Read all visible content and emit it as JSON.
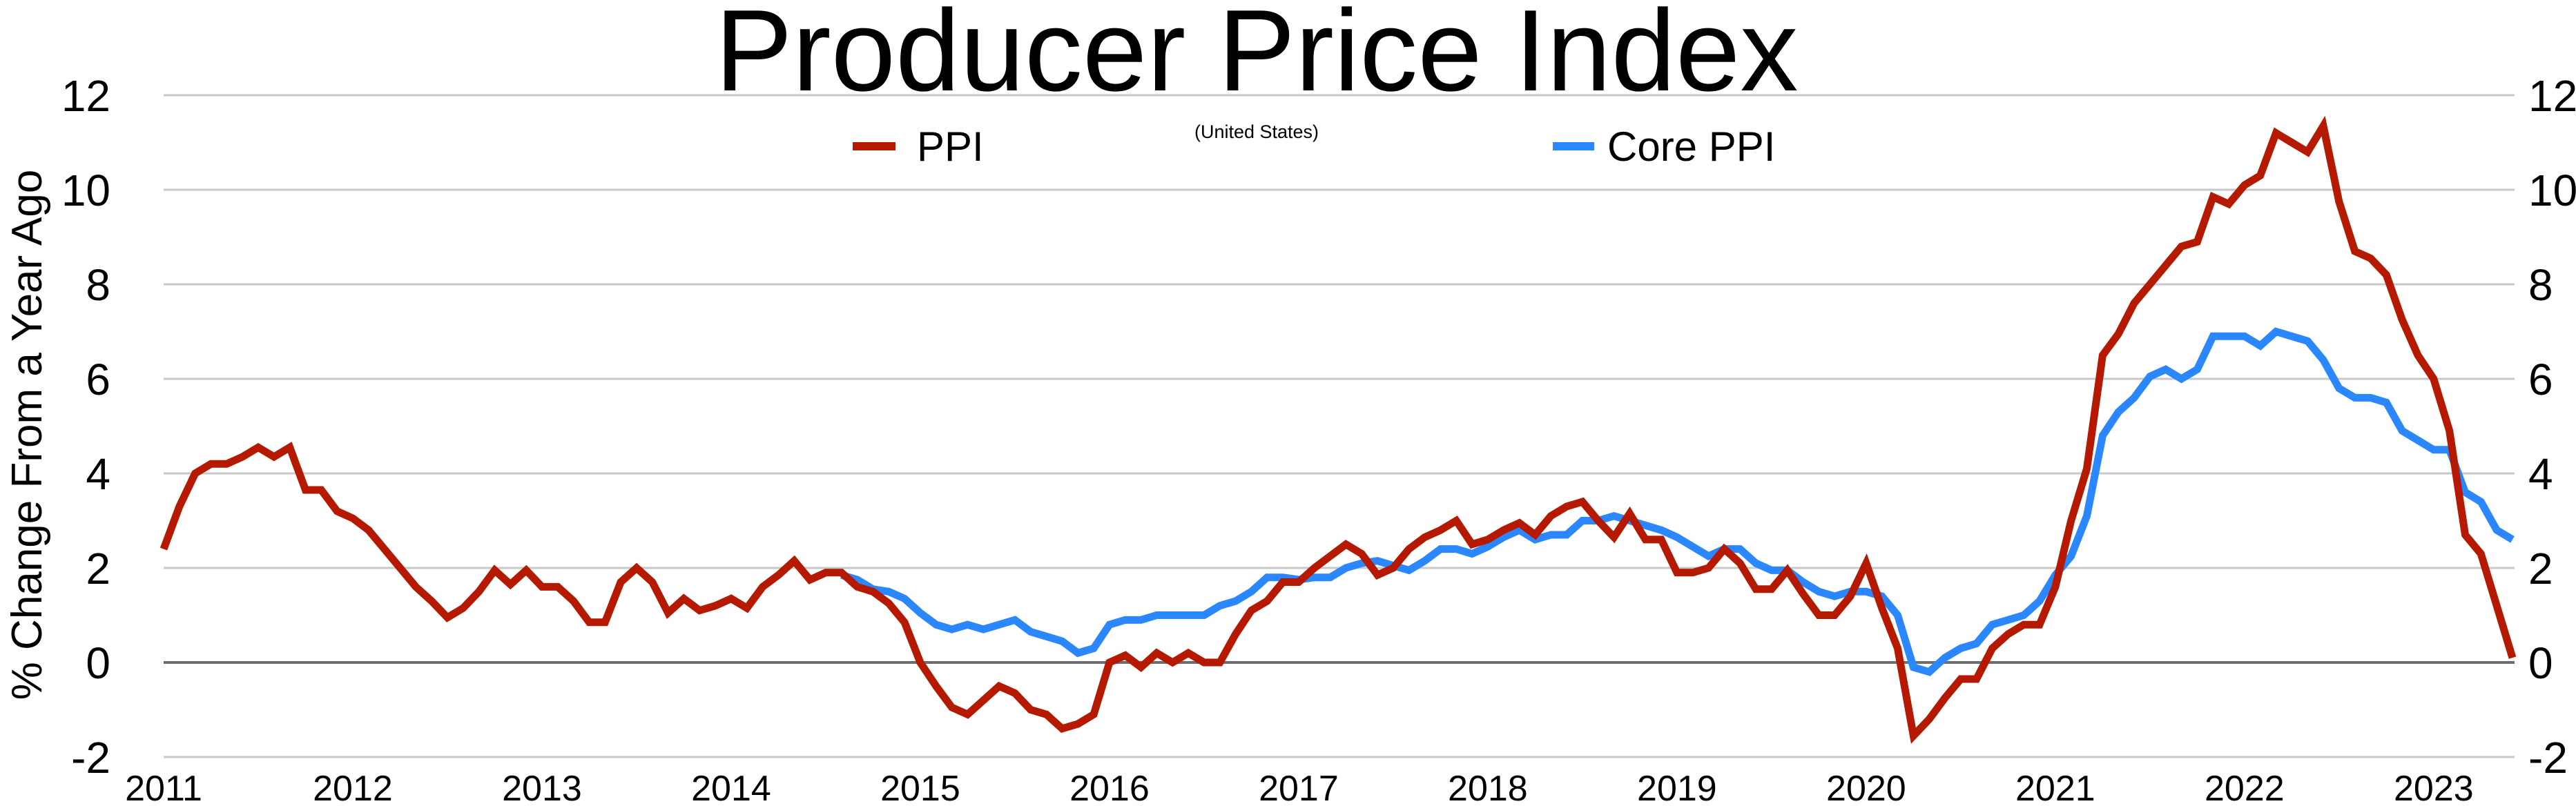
{
  "chart_data": {
    "type": "line",
    "title": "Producer Price Index",
    "subtitle": "(United States)",
    "xlabel": "",
    "ylabel": "% Change From a Year Ago",
    "ylim": [
      -2,
      12
    ],
    "yticks": [
      -2,
      0,
      2,
      4,
      6,
      8,
      10,
      12
    ],
    "x_start": "2011-01",
    "x_frequency": "monthly",
    "xtick_labels": [
      "2011",
      "2012",
      "2013",
      "2014",
      "2015",
      "2016",
      "2017",
      "2018",
      "2019",
      "2020",
      "2021",
      "2022",
      "2023"
    ],
    "grid": true,
    "legend_position": "top",
    "colors": {
      "PPI": "#b51a00",
      "Core PPI": "#2a87ff"
    },
    "series": [
      {
        "name": "PPI",
        "start_index": 0,
        "values": [
          2.4,
          3.3,
          4.0,
          4.2,
          4.2,
          4.35,
          4.55,
          4.35,
          4.55,
          3.65,
          3.65,
          3.2,
          3.05,
          2.8,
          2.4,
          2.0,
          1.6,
          1.3,
          0.95,
          1.15,
          1.5,
          1.95,
          1.65,
          1.95,
          1.6,
          1.6,
          1.3,
          0.85,
          0.85,
          1.7,
          2.0,
          1.7,
          1.05,
          1.35,
          1.1,
          1.2,
          1.35,
          1.15,
          1.6,
          1.85,
          2.15,
          1.75,
          1.9,
          1.9,
          1.6,
          1.5,
          1.25,
          0.85,
          0.0,
          -0.5,
          -0.95,
          -1.1,
          -0.8,
          -0.5,
          -0.65,
          -1.0,
          -1.1,
          -1.4,
          -1.3,
          -1.1,
          0.0,
          0.15,
          -0.1,
          0.2,
          0.0,
          0.2,
          0.0,
          0.0,
          0.6,
          1.1,
          1.3,
          1.7,
          1.7,
          2.0,
          2.25,
          2.5,
          2.3,
          1.85,
          2.0,
          2.4,
          2.65,
          2.8,
          3.0,
          2.5,
          2.6,
          2.8,
          2.95,
          2.7,
          3.1,
          3.3,
          3.4,
          3.0,
          2.65,
          3.15,
          2.6,
          2.6,
          1.9,
          1.9,
          2.0,
          2.4,
          2.1,
          1.55,
          1.55,
          1.95,
          1.45,
          1.0,
          1.0,
          1.4,
          2.1,
          1.15,
          0.3,
          -1.55,
          -1.2,
          -0.75,
          -0.35,
          -0.35,
          0.3,
          0.6,
          0.8,
          0.8,
          1.6,
          3.0,
          4.1,
          6.5,
          6.95,
          7.6,
          8.0,
          8.4,
          8.8,
          8.9,
          9.85,
          9.7,
          10.1,
          10.3,
          11.2,
          11.0,
          10.8,
          11.35,
          9.75,
          8.7,
          8.55,
          8.2,
          7.25,
          6.5,
          6.0,
          4.9,
          2.7,
          2.3,
          1.2,
          0.1
        ]
      },
      {
        "name": "Core PPI",
        "start_index": 43,
        "values": [
          1.85,
          1.75,
          1.55,
          1.5,
          1.35,
          1.05,
          0.8,
          0.7,
          0.8,
          0.7,
          0.8,
          0.9,
          0.65,
          0.55,
          0.45,
          0.2,
          0.3,
          0.8,
          0.9,
          0.9,
          1.0,
          1.0,
          1.0,
          1.0,
          1.2,
          1.3,
          1.5,
          1.8,
          1.8,
          1.75,
          1.8,
          1.8,
          2.0,
          2.1,
          2.15,
          2.05,
          1.95,
          2.15,
          2.4,
          2.4,
          2.3,
          2.45,
          2.65,
          2.8,
          2.6,
          2.7,
          2.7,
          3.0,
          3.0,
          3.1,
          3.0,
          2.9,
          2.8,
          2.65,
          2.45,
          2.25,
          2.4,
          2.4,
          2.1,
          1.95,
          1.95,
          1.7,
          1.5,
          1.4,
          1.5,
          1.5,
          1.4,
          1.0,
          -0.1,
          -0.2,
          0.1,
          0.3,
          0.4,
          0.8,
          0.9,
          1.0,
          1.3,
          1.85,
          2.25,
          3.1,
          4.8,
          5.3,
          5.6,
          6.05,
          6.2,
          6.0,
          6.2,
          6.9,
          6.9,
          6.9,
          6.7,
          7.0,
          6.9,
          6.8,
          6.4,
          5.8,
          5.6,
          5.6,
          5.5,
          4.9,
          4.7,
          4.5,
          4.5,
          3.6,
          3.4,
          2.8,
          2.6
        ]
      }
    ]
  }
}
